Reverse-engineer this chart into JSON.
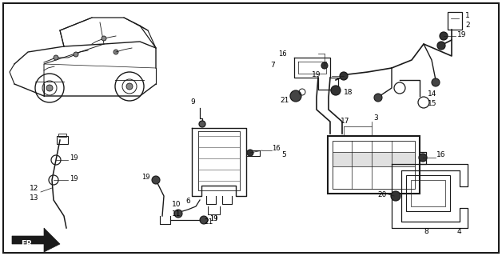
{
  "background_color": "#ffffff",
  "border_color": "#000000",
  "figsize": [
    6.28,
    3.2
  ],
  "dpi": 100,
  "line_color": "#1a1a1a",
  "fill_color": "#2a2a2a"
}
